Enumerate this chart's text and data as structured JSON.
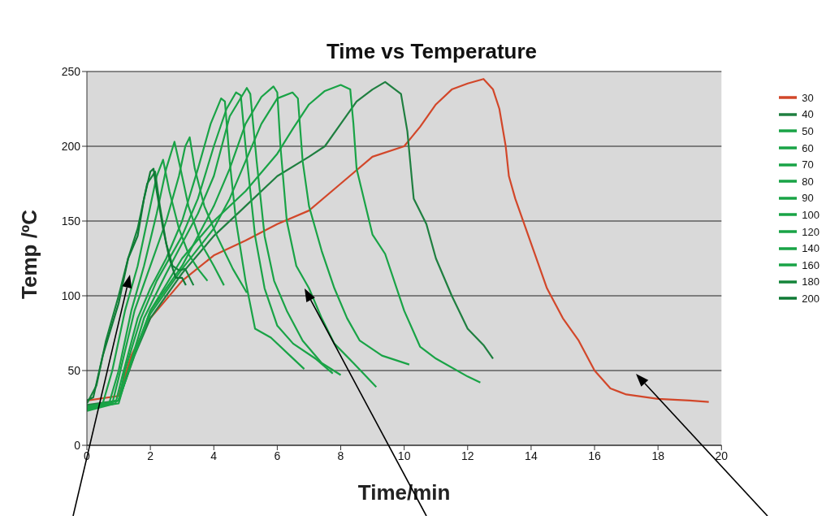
{
  "chart_data": {
    "type": "line",
    "title": "Time vs Temperature",
    "xlabel": "Time/min",
    "ylabel": "Temp /ºC",
    "xlim": [
      0,
      20
    ],
    "xticks": [
      0,
      2,
      4,
      6,
      8,
      10,
      12,
      14,
      16,
      18,
      20
    ],
    "ylim": [
      0,
      250
    ],
    "yticks": [
      0,
      50,
      100,
      150,
      200,
      250
    ],
    "grid": "y",
    "legend": "right",
    "marker": "none",
    "line_style": "solid",
    "series": [
      {
        "name": "30",
        "color": "#d2472a",
        "x": [
          0,
          1,
          1.4,
          2,
          3,
          4,
          5,
          6,
          7,
          8,
          9,
          10,
          10.5,
          11,
          11.5,
          12,
          12.5,
          12.8,
          13,
          13.2,
          13.3,
          13.5,
          14,
          14.5,
          15,
          15.5,
          16,
          16.5,
          17,
          18,
          19,
          19.6
        ],
        "values": [
          30,
          33,
          60,
          85,
          110,
          127,
          137,
          148,
          157,
          175,
          193,
          200,
          213,
          228,
          238,
          242,
          245,
          238,
          225,
          200,
          180,
          165,
          135,
          105,
          85,
          70,
          50,
          38,
          34,
          31,
          30,
          29
        ]
      },
      {
        "name": "40",
        "color": "#1f7f40",
        "x": [
          0,
          1,
          1.5,
          2,
          3,
          4,
          5,
          6,
          7,
          7.5,
          8,
          8.5,
          9,
          9.4,
          9.9,
          10.1,
          10.3,
          10.7,
          11,
          11.5,
          12,
          12.5,
          12.8
        ],
        "values": [
          27,
          30,
          60,
          85,
          115,
          140,
          160,
          180,
          193,
          200,
          215,
          230,
          238,
          243,
          235,
          210,
          165,
          148,
          125,
          100,
          78,
          67,
          58
        ]
      },
      {
        "name": "50",
        "color": "#19a346",
        "x": [
          0,
          1,
          1.3,
          2,
          3,
          4,
          5,
          6,
          6.5,
          7,
          7.5,
          8,
          8.3,
          8.4,
          8.5,
          9,
          9.4,
          10,
          10.5,
          11,
          12,
          12.4
        ],
        "values": [
          25,
          28,
          50,
          90,
          125,
          150,
          170,
          195,
          212,
          228,
          237,
          241,
          238,
          215,
          185,
          141,
          128,
          90,
          66,
          58,
          46,
          42
        ]
      },
      {
        "name": "60",
        "color": "#19a346",
        "x": [
          0,
          1,
          1.4,
          2,
          3,
          4,
          4.5,
          5,
          5.5,
          6,
          6.48,
          6.65,
          6.8,
          7,
          7.4,
          7.8,
          8.2,
          8.6,
          9.3,
          10.16
        ],
        "values": [
          26,
          30,
          55,
          88,
          118,
          145,
          165,
          190,
          215,
          232,
          236,
          232,
          190,
          160,
          130,
          105,
          85,
          70,
          60,
          54
        ]
      },
      {
        "name": "70",
        "color": "#19a346",
        "x": [
          0,
          1,
          1.4,
          2,
          3,
          3.5,
          4,
          4.5,
          5,
          5.5,
          5.88,
          6,
          6.1,
          6.3,
          6.6,
          7,
          7.4,
          7.8,
          8.4,
          9.12
        ],
        "values": [
          25,
          30,
          55,
          90,
          120,
          140,
          160,
          185,
          215,
          233,
          240,
          236,
          200,
          150,
          120,
          105,
          85,
          68,
          55,
          39
        ]
      },
      {
        "name": "80",
        "color": "#19a346",
        "x": [
          0,
          1,
          1.3,
          1.8,
          2.5,
          3,
          3.5,
          4,
          4.5,
          5.04,
          5.15,
          5.35,
          5.6,
          5.9,
          6.3,
          6.8,
          7.4,
          8
        ],
        "values": [
          25,
          30,
          50,
          85,
          115,
          135,
          155,
          180,
          220,
          239,
          235,
          190,
          140,
          110,
          90,
          70,
          55,
          47
        ]
      },
      {
        "name": "90",
        "color": "#19a346",
        "x": [
          0,
          1,
          1.2,
          1.7,
          2.2,
          3,
          3.5,
          4,
          4.4,
          4.7,
          4.85,
          5,
          5.3,
          5.6,
          6,
          6.5,
          7.2,
          7.75
        ],
        "values": [
          24,
          30,
          50,
          85,
          110,
          140,
          165,
          200,
          225,
          236,
          234,
          200,
          140,
          105,
          80,
          68,
          58,
          48
        ]
      },
      {
        "name": "100",
        "color": "#19a346",
        "x": [
          0,
          0.9,
          1.1,
          1.6,
          2,
          2.5,
          3,
          3.5,
          3.9,
          4.23,
          4.35,
          4.5,
          4.7,
          5,
          5.3,
          5.8,
          6.4,
          6.85
        ],
        "values": [
          23,
          28,
          45,
          85,
          105,
          125,
          150,
          185,
          215,
          232,
          230,
          190,
          150,
          110,
          78,
          72,
          60,
          51
        ]
      },
      {
        "name": "120",
        "color": "#19a346",
        "x": [
          0,
          0.8,
          1,
          1.5,
          2,
          2.5,
          2.9,
          3.1,
          3.24,
          3.4,
          3.7,
          4.1,
          4.6,
          5.04
        ],
        "values": [
          24,
          28,
          45,
          90,
          120,
          150,
          180,
          200,
          206,
          185,
          160,
          140,
          118,
          102
        ]
      },
      {
        "name": "140",
        "color": "#19a346",
        "x": [
          0,
          0.7,
          1,
          1.4,
          1.8,
          2.2,
          2.5,
          2.76,
          2.95,
          3.2,
          3.6,
          4,
          4.32
        ],
        "values": [
          24,
          28,
          50,
          90,
          120,
          155,
          185,
          203,
          185,
          160,
          135,
          120,
          107
        ]
      },
      {
        "name": "160",
        "color": "#19a346",
        "x": [
          0,
          0.5,
          0.8,
          1.2,
          1.6,
          2,
          2.2,
          2.4,
          2.6,
          2.9,
          3.2,
          3.5,
          3.8
        ],
        "values": [
          25,
          28,
          50,
          90,
          120,
          160,
          180,
          191,
          170,
          145,
          128,
          118,
          110
        ]
      },
      {
        "name": "180",
        "color": "#14843a",
        "x": [
          0,
          0.3,
          0.6,
          1,
          1.3,
          1.6,
          1.9,
          2.15,
          2.3,
          2.5,
          2.7,
          2.9,
          3.1,
          3.36
        ],
        "values": [
          28,
          40,
          70,
          100,
          125,
          145,
          175,
          183,
          160,
          135,
          120,
          117,
          118,
          107
        ]
      },
      {
        "name": "200",
        "color": "#0f7a35",
        "x": [
          0,
          0.2,
          0.5,
          1,
          1.3,
          1.6,
          1.8,
          2,
          2.1,
          2.2,
          2.4,
          2.6,
          2.8,
          3,
          3.12
        ],
        "values": [
          30,
          32,
          60,
          95,
          125,
          140,
          165,
          183,
          185,
          170,
          145,
          125,
          112,
          112,
          107
        ]
      }
    ]
  }
}
